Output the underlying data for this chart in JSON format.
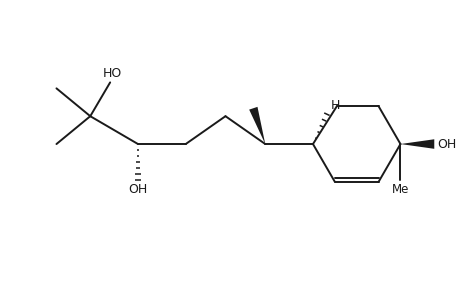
{
  "background": "#ffffff",
  "line_color": "#1a1a1a",
  "font_size": 9,
  "lw": 1.4,
  "xlim": [
    -0.5,
    10.5
  ],
  "ylim": [
    1.0,
    7.5
  ],
  "figsize": [
    4.6,
    3.0
  ],
  "dpi": 100
}
